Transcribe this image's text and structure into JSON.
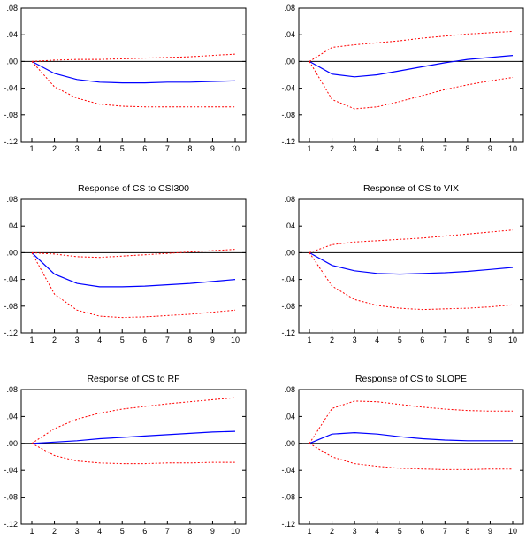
{
  "chart_data": [
    {
      "type": "line",
      "title": "",
      "x": [
        1,
        2,
        3,
        4,
        5,
        6,
        7,
        8,
        9,
        10
      ],
      "ylim": [
        -0.12,
        0.08
      ],
      "yticks": [
        ".08",
        ".04",
        ".00",
        "-.04",
        "-.08",
        "-.12"
      ],
      "series": [
        {
          "role": "response",
          "values": [
            0.0,
            -0.018,
            -0.027,
            -0.031,
            -0.032,
            -0.032,
            -0.031,
            -0.031,
            -0.03,
            -0.029
          ]
        },
        {
          "role": "upper_band",
          "values": [
            0.0,
            0.002,
            0.003,
            0.003,
            0.004,
            0.005,
            0.006,
            0.007,
            0.009,
            0.011
          ]
        },
        {
          "role": "lower_band",
          "values": [
            0.0,
            -0.038,
            -0.055,
            -0.064,
            -0.067,
            -0.068,
            -0.068,
            -0.068,
            -0.068,
            -0.068
          ]
        }
      ],
      "colors": {
        "response": "#0000ff",
        "band": "#ff0000"
      }
    },
    {
      "type": "line",
      "title": "",
      "x": [
        1,
        2,
        3,
        4,
        5,
        6,
        7,
        8,
        9,
        10
      ],
      "ylim": [
        -0.12,
        0.08
      ],
      "yticks": [
        ".08",
        ".04",
        ".00",
        "-.04",
        "-.08",
        "-.12"
      ],
      "series": [
        {
          "role": "response",
          "values": [
            0.0,
            -0.019,
            -0.023,
            -0.02,
            -0.014,
            -0.008,
            -0.002,
            0.003,
            0.006,
            0.009
          ]
        },
        {
          "role": "upper_band",
          "values": [
            0.0,
            0.021,
            0.025,
            0.028,
            0.031,
            0.035,
            0.038,
            0.041,
            0.043,
            0.045
          ]
        },
        {
          "role": "lower_band",
          "values": [
            0.0,
            -0.057,
            -0.071,
            -0.068,
            -0.06,
            -0.051,
            -0.042,
            -0.035,
            -0.029,
            -0.024
          ]
        }
      ],
      "colors": {
        "response": "#0000ff",
        "band": "#ff0000"
      }
    },
    {
      "type": "line",
      "title": "Response of CS to CSI300",
      "x": [
        1,
        2,
        3,
        4,
        5,
        6,
        7,
        8,
        9,
        10
      ],
      "ylim": [
        -0.12,
        0.08
      ],
      "yticks": [
        ".08",
        ".04",
        ".00",
        "-.04",
        "-.08",
        "-.12"
      ],
      "series": [
        {
          "role": "response",
          "values": [
            0.0,
            -0.032,
            -0.046,
            -0.051,
            -0.051,
            -0.05,
            -0.048,
            -0.046,
            -0.043,
            -0.04
          ]
        },
        {
          "role": "upper_band",
          "values": [
            0.0,
            -0.002,
            -0.006,
            -0.007,
            -0.005,
            -0.003,
            -0.001,
            0.001,
            0.003,
            0.005
          ]
        },
        {
          "role": "lower_band",
          "values": [
            0.0,
            -0.062,
            -0.086,
            -0.095,
            -0.097,
            -0.096,
            -0.094,
            -0.092,
            -0.089,
            -0.086
          ]
        }
      ],
      "colors": {
        "response": "#0000ff",
        "band": "#ff0000"
      }
    },
    {
      "type": "line",
      "title": "Response of CS to VIX",
      "x": [
        1,
        2,
        3,
        4,
        5,
        6,
        7,
        8,
        9,
        10
      ],
      "ylim": [
        -0.12,
        0.08
      ],
      "yticks": [
        ".08",
        ".04",
        ".00",
        "-.04",
        "-.08",
        "-.12"
      ],
      "series": [
        {
          "role": "response",
          "values": [
            0.0,
            -0.019,
            -0.027,
            -0.031,
            -0.032,
            -0.031,
            -0.03,
            -0.028,
            -0.025,
            -0.022
          ]
        },
        {
          "role": "upper_band",
          "values": [
            0.0,
            0.012,
            0.016,
            0.018,
            0.02,
            0.022,
            0.025,
            0.028,
            0.031,
            0.034
          ]
        },
        {
          "role": "lower_band",
          "values": [
            0.0,
            -0.05,
            -0.07,
            -0.079,
            -0.083,
            -0.085,
            -0.084,
            -0.083,
            -0.081,
            -0.078
          ]
        }
      ],
      "colors": {
        "response": "#0000ff",
        "band": "#ff0000"
      }
    },
    {
      "type": "line",
      "title": "Response of CS to RF",
      "x": [
        1,
        2,
        3,
        4,
        5,
        6,
        7,
        8,
        9,
        10
      ],
      "ylim": [
        -0.12,
        0.08
      ],
      "yticks": [
        ".08",
        ".04",
        ".00",
        "-.04",
        "-.08",
        "-.12"
      ],
      "series": [
        {
          "role": "response",
          "values": [
            0.0,
            0.002,
            0.004,
            0.007,
            0.009,
            0.011,
            0.013,
            0.015,
            0.017,
            0.018
          ]
        },
        {
          "role": "upper_band",
          "values": [
            0.0,
            0.022,
            0.036,
            0.045,
            0.051,
            0.055,
            0.059,
            0.062,
            0.065,
            0.068
          ]
        },
        {
          "role": "lower_band",
          "values": [
            0.0,
            -0.018,
            -0.026,
            -0.029,
            -0.03,
            -0.03,
            -0.029,
            -0.029,
            -0.028,
            -0.028
          ]
        }
      ],
      "colors": {
        "response": "#0000ff",
        "band": "#ff0000"
      }
    },
    {
      "type": "line",
      "title": "Response of CS to SLOPE",
      "x": [
        1,
        2,
        3,
        4,
        5,
        6,
        7,
        8,
        9,
        10
      ],
      "ylim": [
        -0.12,
        0.08
      ],
      "yticks": [
        ".08",
        ".04",
        ".00",
        "-.04",
        "-.08",
        "-.12"
      ],
      "series": [
        {
          "role": "response",
          "values": [
            0.0,
            0.014,
            0.016,
            0.014,
            0.01,
            0.007,
            0.005,
            0.004,
            0.004,
            0.004
          ]
        },
        {
          "role": "upper_band",
          "values": [
            0.0,
            0.052,
            0.063,
            0.062,
            0.058,
            0.054,
            0.051,
            0.049,
            0.048,
            0.048
          ]
        },
        {
          "role": "lower_band",
          "values": [
            0.0,
            -0.02,
            -0.03,
            -0.034,
            -0.037,
            -0.038,
            -0.039,
            -0.039,
            -0.038,
            -0.038
          ]
        }
      ],
      "colors": {
        "response": "#0000ff",
        "band": "#ff0000"
      }
    }
  ]
}
